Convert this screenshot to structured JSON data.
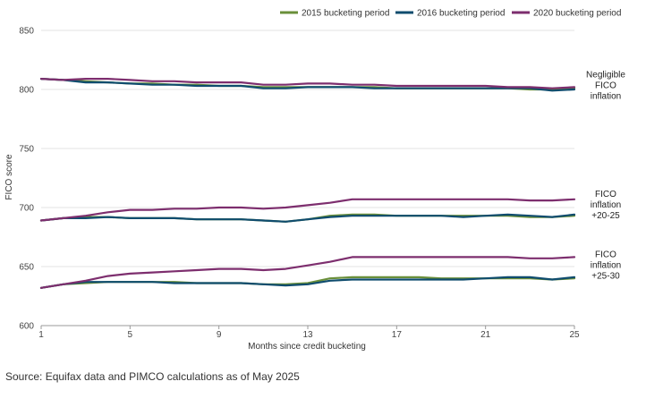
{
  "chart_data": {
    "type": "line",
    "xlabel": "Months since credit bucketing",
    "ylabel": "FICO score",
    "xlim": [
      1,
      25
    ],
    "ylim": [
      600,
      850
    ],
    "x_ticks": [
      1,
      5,
      9,
      13,
      17,
      21,
      25
    ],
    "y_ticks": [
      600,
      650,
      700,
      750,
      800,
      850
    ],
    "grid": "horizontal",
    "legend_position": "top-right",
    "x": [
      1,
      2,
      3,
      4,
      5,
      6,
      7,
      8,
      9,
      10,
      11,
      12,
      13,
      14,
      15,
      16,
      17,
      18,
      19,
      20,
      21,
      22,
      23,
      24,
      25
    ],
    "series": [
      {
        "name": "2015 bucketing period",
        "color": "#6a8f3a",
        "groups": [
          [
            809,
            808,
            807,
            806,
            805,
            805,
            804,
            804,
            803,
            803,
            802,
            802,
            802,
            802,
            802,
            802,
            801,
            801,
            801,
            801,
            801,
            801,
            800,
            800,
            801
          ],
          [
            689,
            691,
            692,
            692,
            691,
            691,
            691,
            690,
            690,
            690,
            689,
            688,
            690,
            693,
            694,
            694,
            693,
            693,
            693,
            693,
            693,
            693,
            692,
            692,
            693
          ],
          [
            632,
            635,
            636,
            637,
            637,
            637,
            637,
            636,
            636,
            636,
            635,
            635,
            636,
            640,
            641,
            641,
            641,
            641,
            640,
            640,
            640,
            640,
            640,
            639,
            640
          ]
        ]
      },
      {
        "name": "2016 bucketing period",
        "color": "#0f4c6e",
        "groups": [
          [
            809,
            808,
            806,
            806,
            805,
            804,
            804,
            803,
            803,
            803,
            801,
            801,
            802,
            802,
            802,
            801,
            801,
            801,
            801,
            801,
            801,
            801,
            801,
            799,
            800
          ],
          [
            689,
            691,
            691,
            692,
            691,
            691,
            691,
            690,
            690,
            690,
            689,
            688,
            690,
            692,
            693,
            693,
            693,
            693,
            693,
            692,
            693,
            694,
            693,
            692,
            694
          ],
          [
            632,
            635,
            637,
            637,
            637,
            637,
            636,
            636,
            636,
            636,
            635,
            634,
            635,
            638,
            639,
            639,
            639,
            639,
            639,
            639,
            640,
            641,
            641,
            639,
            641
          ]
        ]
      },
      {
        "name": "2020 bucketing period",
        "color": "#7d2e6e",
        "groups": [
          [
            809,
            808,
            809,
            809,
            808,
            807,
            807,
            806,
            806,
            806,
            804,
            804,
            805,
            805,
            804,
            804,
            803,
            803,
            803,
            803,
            803,
            802,
            802,
            801,
            802
          ],
          [
            689,
            691,
            693,
            696,
            698,
            698,
            699,
            699,
            700,
            700,
            699,
            700,
            702,
            704,
            707,
            707,
            707,
            707,
            707,
            707,
            707,
            707,
            706,
            706,
            707
          ],
          [
            632,
            635,
            638,
            642,
            644,
            645,
            646,
            647,
            648,
            648,
            647,
            648,
            651,
            654,
            658,
            658,
            658,
            658,
            658,
            658,
            658,
            658,
            657,
            657,
            658
          ]
        ]
      }
    ],
    "annotations": [
      {
        "lines": [
          "Negligible",
          "FICO",
          "inflation"
        ],
        "y": 801
      },
      {
        "lines": [
          "FICO",
          "inflation",
          "+20-25"
        ],
        "y": 700
      },
      {
        "lines": [
          "FICO",
          "inflation",
          "+25-30"
        ],
        "y": 649
      }
    ]
  },
  "source_note": "Source: Equifax data and PIMCO calculations as of May 2025"
}
